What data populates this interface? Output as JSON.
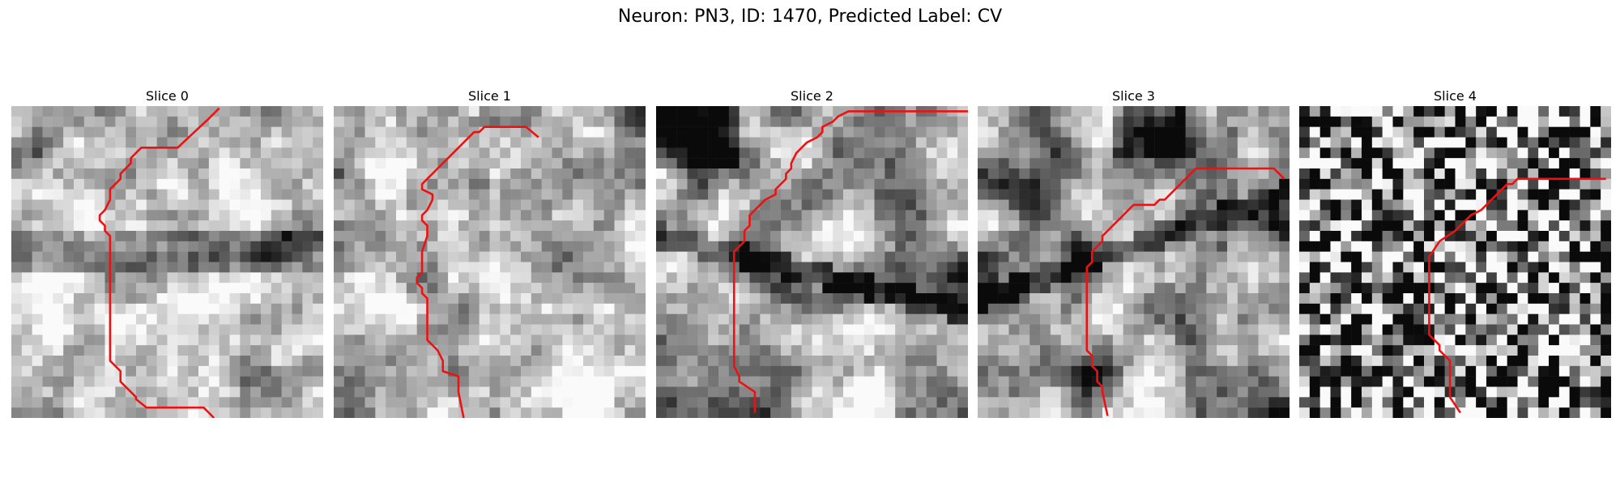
{
  "figure": {
    "title": "Neuron: PN3, ID: 1470, Predicted Label: CV"
  },
  "colors": {
    "contour": "#ee1111",
    "colormap": "gray"
  },
  "slices": [
    {
      "title": "Slice 0",
      "contour": [
        [
          20,
          0.2
        ],
        [
          19,
          1.2
        ],
        [
          16,
          4
        ],
        [
          12.5,
          4
        ],
        [
          11.5,
          5
        ],
        [
          11.5,
          5.5
        ],
        [
          10.5,
          6.5
        ],
        [
          10.5,
          7
        ],
        [
          9.5,
          8
        ],
        [
          9.5,
          9
        ],
        [
          9,
          10
        ],
        [
          8.5,
          10.5
        ],
        [
          8.5,
          11
        ],
        [
          9,
          11.5
        ],
        [
          9,
          12
        ],
        [
          9.5,
          12.5
        ],
        [
          9.5,
          24.5
        ],
        [
          10.5,
          25.5
        ],
        [
          10.5,
          26.5
        ],
        [
          12,
          28
        ],
        [
          12,
          28.2
        ],
        [
          13,
          29
        ],
        [
          18.5,
          29
        ],
        [
          19.5,
          30
        ]
      ]
    },
    {
      "title": "Slice 1",
      "contour": [
        [
          19.7,
          3
        ],
        [
          18.5,
          2
        ],
        [
          14.5,
          2
        ],
        [
          14,
          2.5
        ],
        [
          13.5,
          2.5
        ],
        [
          12.5,
          3.5
        ],
        [
          11,
          5
        ],
        [
          10.5,
          5.5
        ],
        [
          10,
          6
        ],
        [
          9.5,
          6.5
        ],
        [
          9,
          7
        ],
        [
          8.5,
          7.5
        ],
        [
          8.5,
          8
        ],
        [
          9.5,
          8.5
        ],
        [
          9.5,
          9
        ],
        [
          9,
          10
        ],
        [
          8.5,
          10.5
        ],
        [
          8.5,
          11
        ],
        [
          9,
          11.5
        ],
        [
          9,
          12.5
        ],
        [
          8.5,
          14
        ],
        [
          8.5,
          16
        ],
        [
          8,
          16.5
        ],
        [
          8,
          17
        ],
        [
          8.5,
          17.5
        ],
        [
          8.5,
          18
        ],
        [
          9,
          18.5
        ],
        [
          9,
          22.5
        ],
        [
          10,
          23.5
        ],
        [
          10.5,
          24.5
        ],
        [
          10.5,
          25.5
        ],
        [
          12,
          26
        ],
        [
          12,
          27.5
        ],
        [
          12.5,
          30
        ]
      ]
    },
    {
      "title": "Slice 2",
      "contour": [
        [
          9.5,
          29.5
        ],
        [
          9.5,
          27.5
        ],
        [
          8,
          26.5
        ],
        [
          8,
          26
        ],
        [
          7.5,
          25
        ],
        [
          7.5,
          14
        ],
        [
          8,
          13.5
        ],
        [
          8.5,
          13
        ],
        [
          8.5,
          12
        ],
        [
          9,
          11.5
        ],
        [
          9,
          10.5
        ],
        [
          9.5,
          10
        ],
        [
          10,
          9.5
        ],
        [
          10.5,
          9
        ],
        [
          11.5,
          8.5
        ],
        [
          11.5,
          8
        ],
        [
          12,
          7.5
        ],
        [
          12.5,
          7
        ],
        [
          12.5,
          6.5
        ],
        [
          13,
          6
        ],
        [
          13,
          5.5
        ],
        [
          13.5,
          4.5
        ],
        [
          14,
          4
        ],
        [
          14.5,
          3.5
        ],
        [
          15.5,
          3
        ],
        [
          16,
          2.5
        ],
        [
          16,
          2
        ],
        [
          17,
          1.5
        ],
        [
          17.5,
          1
        ],
        [
          18.5,
          0.5
        ],
        [
          19.5,
          0.5
        ],
        [
          30,
          0.5
        ]
      ]
    },
    {
      "title": "Slice 3",
      "contour": [
        [
          29.5,
          7
        ],
        [
          29,
          6.5
        ],
        [
          28.5,
          6
        ],
        [
          21,
          6
        ],
        [
          20.5,
          6.5
        ],
        [
          20,
          7
        ],
        [
          19.5,
          7.5
        ],
        [
          19,
          8
        ],
        [
          18.5,
          8.5
        ],
        [
          18,
          9
        ],
        [
          17.5,
          9
        ],
        [
          17,
          9.5
        ],
        [
          15,
          9.5
        ],
        [
          14.5,
          10
        ],
        [
          14,
          10.5
        ],
        [
          13.5,
          11
        ],
        [
          13,
          11.5
        ],
        [
          12.5,
          12
        ],
        [
          12,
          12.5
        ],
        [
          12,
          13
        ],
        [
          11.5,
          13.5
        ],
        [
          11,
          14
        ],
        [
          11,
          15
        ],
        [
          10.5,
          15.5
        ],
        [
          10.5,
          16.5
        ],
        [
          10.5,
          17
        ],
        [
          10.5,
          23.5
        ],
        [
          11,
          24
        ],
        [
          11,
          25
        ],
        [
          11.5,
          25.5
        ],
        [
          11.5,
          26.5
        ],
        [
          12,
          27
        ],
        [
          12,
          27.5
        ],
        [
          12.5,
          29.8
        ]
      ]
    },
    {
      "title": "Slice 4",
      "contour": [
        [
          29.5,
          7
        ],
        [
          21,
          7
        ],
        [
          20.5,
          7.5
        ],
        [
          20,
          7.5
        ],
        [
          19.5,
          8
        ],
        [
          18.5,
          9
        ],
        [
          18,
          9.5
        ],
        [
          17.5,
          10
        ],
        [
          16.5,
          10.5
        ],
        [
          16,
          11
        ],
        [
          15.5,
          11.5
        ],
        [
          15,
          12
        ],
        [
          13.5,
          13
        ],
        [
          12.5,
          14.5
        ],
        [
          12.5,
          22
        ],
        [
          13.5,
          23
        ],
        [
          13.5,
          23.5
        ],
        [
          14.5,
          24.5
        ],
        [
          14.5,
          28
        ],
        [
          15.5,
          29.5
        ],
        [
          15.5,
          29.5
        ]
      ]
    }
  ]
}
